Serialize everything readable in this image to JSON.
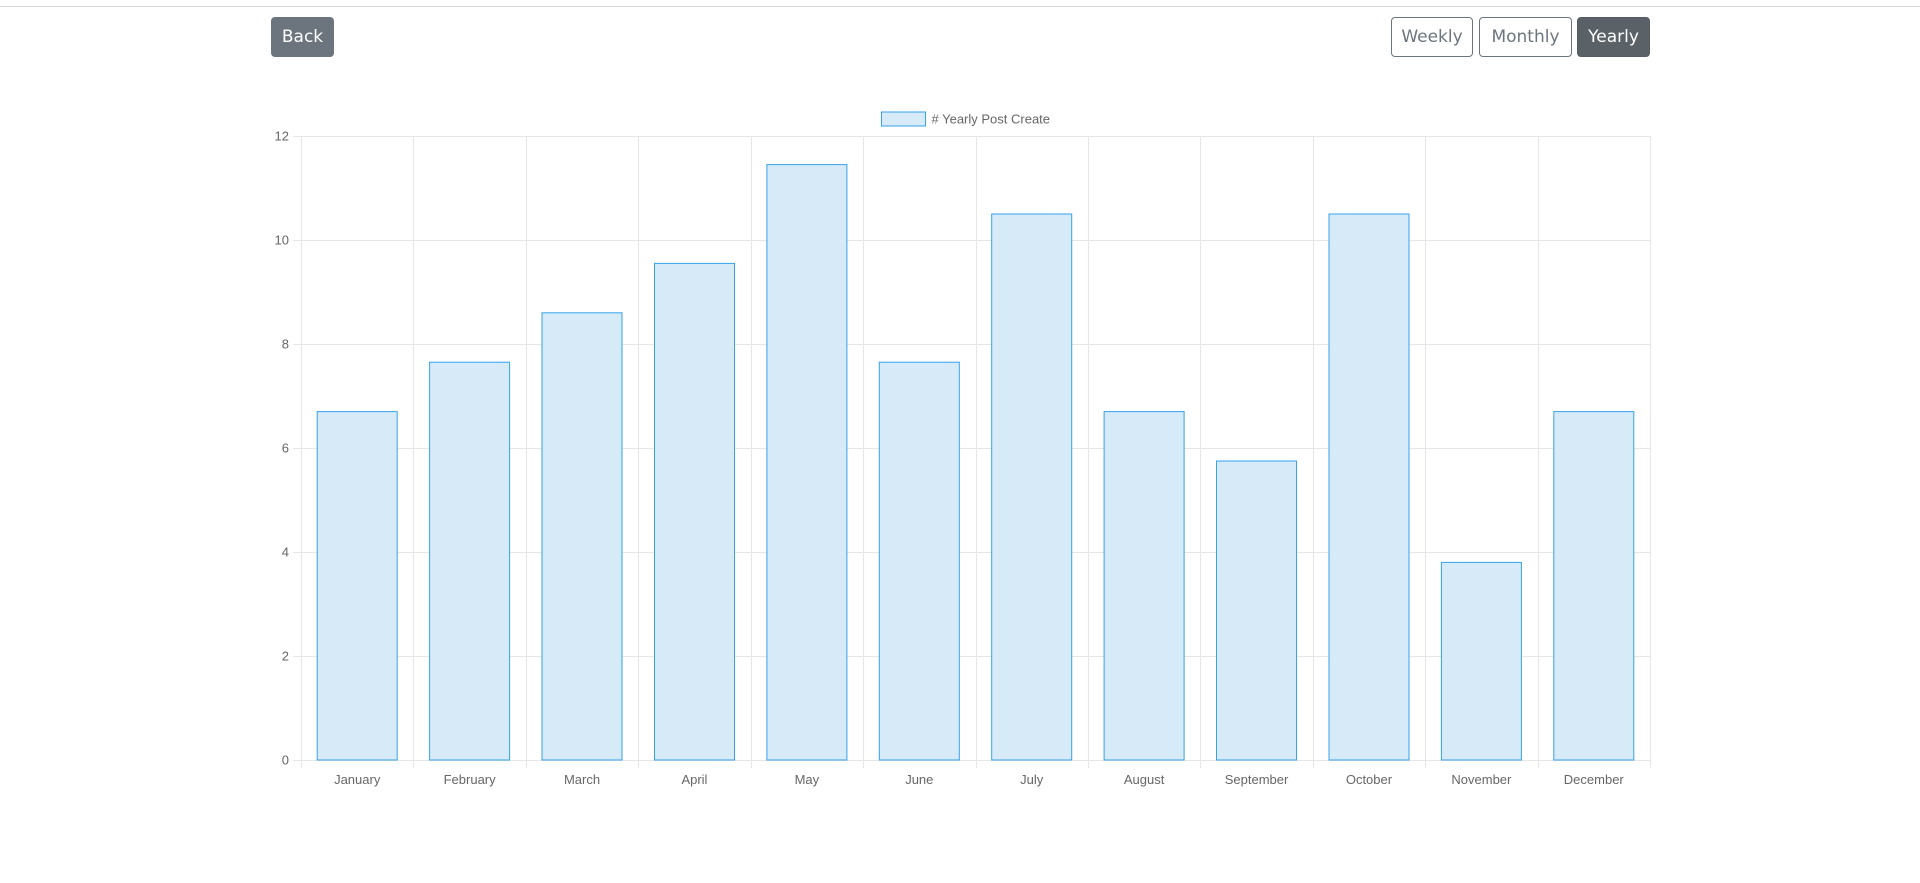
{
  "toolbar": {
    "back_label": "Back",
    "range_options": [
      "Weekly",
      "Monthly",
      "Yearly"
    ],
    "selected_range": "Yearly"
  },
  "colors": {
    "bar_fill": "#d6eaf8",
    "bar_border": "#36a2eb",
    "grid": "#e6e6e6",
    "button_secondary": "#6c757d",
    "button_active": "#5a6268"
  },
  "chart_data": {
    "type": "bar",
    "categories": [
      "January",
      "February",
      "March",
      "April",
      "May",
      "June",
      "July",
      "August",
      "September",
      "October",
      "November",
      "December"
    ],
    "series": [
      {
        "name": "# Yearly Post Create",
        "values": [
          6.7,
          7.65,
          8.6,
          9.55,
          11.45,
          7.65,
          10.5,
          6.7,
          5.75,
          10.5,
          3.8,
          6.7
        ]
      }
    ],
    "ylim": [
      0,
      12
    ],
    "yticks": [
      0,
      2,
      4,
      6,
      8,
      10,
      12
    ],
    "grid": true,
    "legend": "top-center"
  }
}
